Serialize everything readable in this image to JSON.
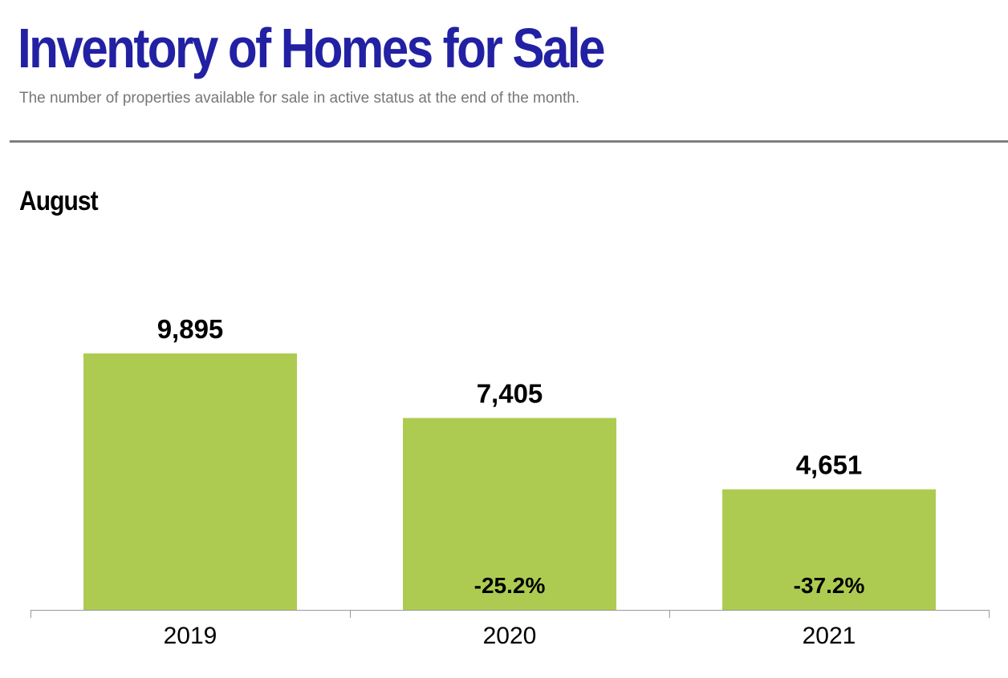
{
  "header": {
    "title": "Inventory of Homes for Sale",
    "subtitle": "The number of properties available for sale in active status at the end of the month."
  },
  "period_label": "August",
  "colors": {
    "bar": "#aecb51",
    "title": "#2221a3",
    "axis": "#999999"
  },
  "chart_data": {
    "type": "bar",
    "title": "Inventory of Homes for Sale",
    "subtitle": "The number of properties available for sale in active status at the end of the month.",
    "period": "August",
    "categories": [
      "2019",
      "2020",
      "2021"
    ],
    "values": [
      9895,
      7405,
      4651
    ],
    "value_labels": [
      "9,895",
      "7,405",
      "4,651"
    ],
    "change_labels": [
      "",
      "-25.2%",
      "-37.2%"
    ],
    "xlabel": "",
    "ylabel": "",
    "ylim": [
      0,
      9895
    ],
    "grid": false,
    "legend": "none"
  }
}
